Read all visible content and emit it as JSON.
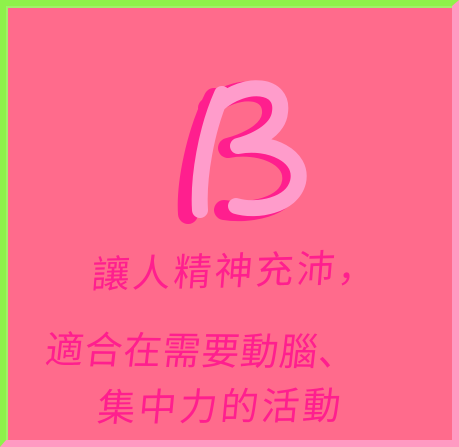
{
  "logo": {
    "letter": "B",
    "colors": {
      "stroke_back": "#ff1f8e",
      "stroke_front": "#ff9ccb",
      "background": "#ff6b8c",
      "border_top_left": "#8ef24a",
      "border_bottom_right": "#ff9ac2"
    }
  },
  "text": {
    "line1": "讓人精神充沛，",
    "line2": "適合在需要動腦、",
    "line3": "集中力的活動"
  }
}
